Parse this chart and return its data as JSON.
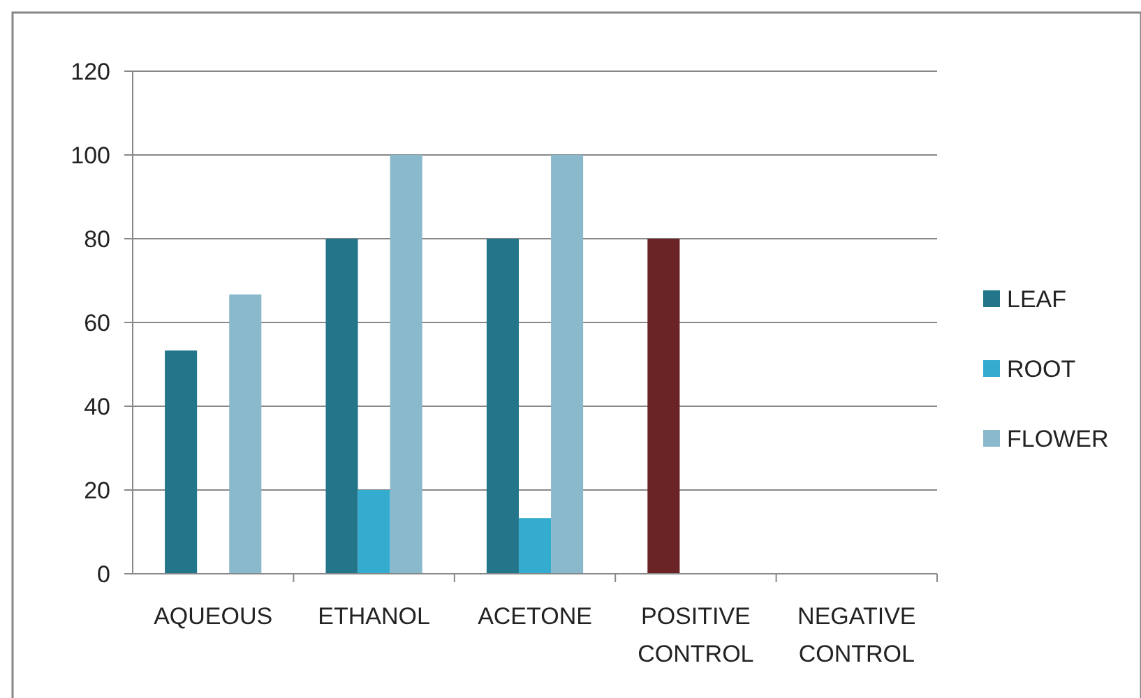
{
  "chart_data": {
    "type": "bar",
    "categories": [
      "AQUEOUS",
      "ETHANOL",
      "ACETONE",
      "POSITIVE CONTROL",
      "NEGATIVE CONTROL"
    ],
    "series": [
      {
        "name": "LEAF",
        "color": "#23758a",
        "colors": [
          "#23758a",
          "#23758a",
          "#23758a",
          "#6b2426",
          "#23758a"
        ],
        "values": [
          53.3,
          80,
          80,
          80,
          0
        ]
      },
      {
        "name": "ROOT",
        "color": "#33acd0",
        "values": [
          0,
          20,
          13.3,
          0,
          0
        ]
      },
      {
        "name": "FLOWER",
        "color": "#8ab9cc",
        "values": [
          66.7,
          100,
          100,
          0,
          0
        ]
      }
    ],
    "ylim": [
      0,
      120
    ],
    "yticks": [
      0,
      20,
      40,
      60,
      80,
      100,
      120
    ],
    "grid": "y",
    "legend": "right"
  }
}
